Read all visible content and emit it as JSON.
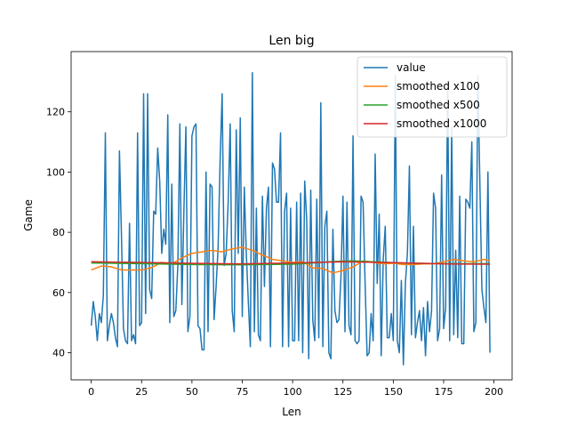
{
  "chart_data": {
    "type": "line",
    "title": "Len big",
    "xlabel": "Len",
    "ylabel": "Game",
    "xlim": [
      -10,
      209
    ],
    "ylim": [
      31,
      140
    ],
    "xticks": [
      0,
      25,
      50,
      75,
      100,
      125,
      150,
      175,
      200
    ],
    "yticks": [
      40,
      60,
      80,
      100,
      120
    ],
    "grid": false,
    "legend_position": "top-right",
    "series": [
      {
        "name": "value",
        "color": "#1f77b4",
        "x": [
          0,
          1,
          2,
          3,
          4,
          5,
          6,
          7,
          8,
          9,
          10,
          11,
          12,
          13,
          14,
          15,
          16,
          17,
          18,
          19,
          20,
          21,
          22,
          23,
          24,
          25,
          26,
          27,
          28,
          29,
          30,
          31,
          32,
          33,
          34,
          35,
          36,
          37,
          38,
          39,
          40,
          41,
          42,
          43,
          44,
          45,
          46,
          47,
          48,
          49,
          50,
          51,
          52,
          53,
          54,
          55,
          56,
          57,
          58,
          59,
          60,
          61,
          62,
          63,
          64,
          65,
          66,
          67,
          68,
          69,
          70,
          71,
          72,
          73,
          74,
          75,
          76,
          77,
          78,
          79,
          80,
          81,
          82,
          83,
          84,
          85,
          86,
          87,
          88,
          89,
          90,
          91,
          92,
          93,
          94,
          95,
          96,
          97,
          98,
          99,
          100,
          101,
          102,
          103,
          104,
          105,
          106,
          107,
          108,
          109,
          110,
          111,
          112,
          113,
          114,
          115,
          116,
          117,
          118,
          119,
          120,
          121,
          122,
          123,
          124,
          125,
          126,
          127,
          128,
          129,
          130,
          131,
          132,
          133,
          134,
          135,
          136,
          137,
          138,
          139,
          140,
          141,
          142,
          143,
          144,
          145,
          146,
          147,
          148,
          149,
          150,
          151,
          152,
          153,
          154,
          155,
          156,
          157,
          158,
          159,
          160,
          161,
          162,
          163,
          164,
          165,
          166,
          167,
          168,
          169,
          170,
          171,
          172,
          173,
          174,
          175,
          176,
          177,
          178,
          179,
          180,
          181,
          182,
          183,
          184,
          185,
          186,
          187,
          188,
          189,
          190,
          191,
          192,
          193,
          194,
          195,
          196,
          197,
          198
        ],
        "y": [
          49,
          57,
          52,
          44,
          53,
          50,
          59,
          113,
          44,
          49,
          53,
          50,
          45,
          42,
          107,
          79,
          48,
          44,
          43,
          83,
          44,
          46,
          43,
          113,
          49,
          50,
          126,
          53,
          126,
          61,
          58,
          87,
          86,
          108,
          97,
          73,
          81,
          76,
          119,
          50,
          96,
          52,
          54,
          69,
          116,
          56,
          87,
          115,
          47,
          52,
          112,
          115,
          116,
          49,
          48,
          41,
          41,
          100,
          47,
          96,
          95,
          51,
          62,
          75,
          104,
          126,
          69,
          73,
          90,
          116,
          54,
          47,
          114,
          73,
          118,
          52,
          95,
          73,
          57,
          42,
          133,
          47,
          88,
          46,
          44,
          92,
          62,
          88,
          95,
          42,
          103,
          101,
          90,
          90,
          113,
          42,
          87,
          93,
          42,
          88,
          44,
          44,
          90,
          44,
          93,
          40,
          97,
          84,
          38,
          94,
          51,
          44,
          91,
          45,
          123,
          42,
          82,
          87,
          40,
          38,
          81,
          54,
          50,
          51,
          65,
          92,
          47,
          90,
          49,
          46,
          112,
          44,
          43,
          44,
          92,
          90,
          63,
          39,
          40,
          53,
          44,
          106,
          63,
          86,
          39,
          71,
          82,
          45,
          45,
          53,
          44,
          132,
          44,
          40,
          64,
          36,
          63,
          73,
          102,
          46,
          82,
          45,
          50,
          54,
          44,
          55,
          39,
          57,
          47,
          54,
          93,
          88,
          44,
          48,
          99,
          48,
          55,
          130,
          44,
          115,
          46,
          74,
          45,
          92,
          43,
          43,
          91,
          90,
          88,
          110,
          47,
          50,
          132,
          96,
          61,
          55,
          50,
          100,
          40
        ]
      },
      {
        "name": "smoothed x100",
        "color": "#ff7f0e",
        "x": [
          0,
          5,
          10,
          15,
          20,
          25,
          30,
          35,
          40,
          45,
          50,
          55,
          60,
          65,
          70,
          75,
          80,
          85,
          90,
          95,
          100,
          105,
          110,
          115,
          120,
          125,
          130,
          135,
          140,
          145,
          150,
          155,
          160,
          165,
          170,
          175,
          180,
          185,
          190,
          195,
          198
        ],
        "y": [
          67.5,
          68.8,
          68.5,
          67.5,
          67.5,
          67.5,
          68.3,
          70.0,
          69.5,
          71.5,
          73.0,
          73.5,
          74.0,
          73.5,
          74.5,
          75.0,
          74.0,
          72.5,
          71.0,
          70.5,
          70.0,
          70.2,
          68.2,
          68.0,
          66.5,
          67.3,
          68.5,
          70.5,
          70.0,
          69.5,
          69.7,
          69.3,
          69.3,
          69.5,
          69.5,
          70.2,
          71.0,
          70.5,
          70.2,
          71.0,
          70.5
        ]
      },
      {
        "name": "smoothed x500",
        "color": "#2ca02c",
        "x": [
          0,
          25,
          50,
          75,
          100,
          110,
          120,
          130,
          140,
          150,
          160,
          175,
          198
        ],
        "y": [
          69.8,
          69.6,
          69.3,
          69.2,
          69.4,
          69.8,
          70.3,
          70.5,
          70.2,
          69.9,
          69.7,
          69.6,
          69.6
        ]
      },
      {
        "name": "smoothed x1000",
        "color": "#d62728",
        "x": [
          0,
          25,
          50,
          75,
          100,
          125,
          150,
          175,
          198
        ],
        "y": [
          70.2,
          70.0,
          69.7,
          69.5,
          69.8,
          70.2,
          69.9,
          69.5,
          69.4
        ]
      }
    ]
  }
}
